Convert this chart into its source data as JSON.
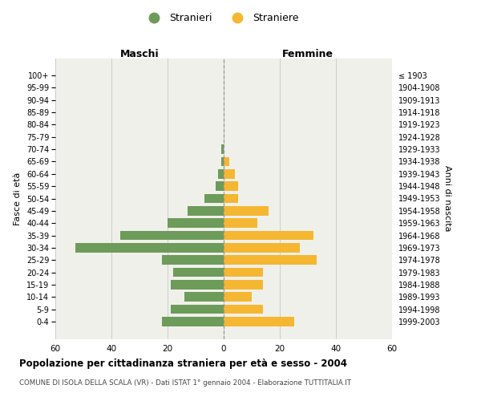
{
  "age_groups": [
    "0-4",
    "5-9",
    "10-14",
    "15-19",
    "20-24",
    "25-29",
    "30-34",
    "35-39",
    "40-44",
    "45-49",
    "50-54",
    "55-59",
    "60-64",
    "65-69",
    "70-74",
    "75-79",
    "80-84",
    "85-89",
    "90-94",
    "95-99",
    "100+"
  ],
  "birth_years": [
    "1999-2003",
    "1994-1998",
    "1989-1993",
    "1984-1988",
    "1979-1983",
    "1974-1978",
    "1969-1973",
    "1964-1968",
    "1959-1963",
    "1954-1958",
    "1949-1953",
    "1944-1948",
    "1939-1943",
    "1934-1938",
    "1929-1933",
    "1924-1928",
    "1919-1923",
    "1914-1918",
    "1909-1913",
    "1904-1908",
    "≤ 1903"
  ],
  "males": [
    22,
    19,
    14,
    19,
    18,
    22,
    53,
    37,
    20,
    13,
    7,
    3,
    2,
    1,
    1,
    0,
    0,
    0,
    0,
    0,
    0
  ],
  "females": [
    25,
    14,
    10,
    14,
    14,
    33,
    27,
    32,
    12,
    16,
    5,
    5,
    4,
    2,
    0,
    0,
    0,
    0,
    0,
    0,
    0
  ],
  "male_color": "#6d9b5a",
  "female_color": "#f5b731",
  "background_color": "#f0f0eb",
  "grid_color": "#cccccc",
  "dashed_line_color": "#999999",
  "title": "Popolazione per cittadinanza straniera per età e sesso - 2004",
  "subtitle": "COMUNE DI ISOLA DELLA SCALA (VR) - Dati ISTAT 1° gennaio 2004 - Elaborazione TUTTITALIA.IT",
  "xlabel_left": "Maschi",
  "xlabel_right": "Femmine",
  "ylabel_left": "Fasce di età",
  "ylabel_right": "Anni di nascita",
  "legend_male": "Stranieri",
  "legend_female": "Straniere",
  "xlim": 60
}
